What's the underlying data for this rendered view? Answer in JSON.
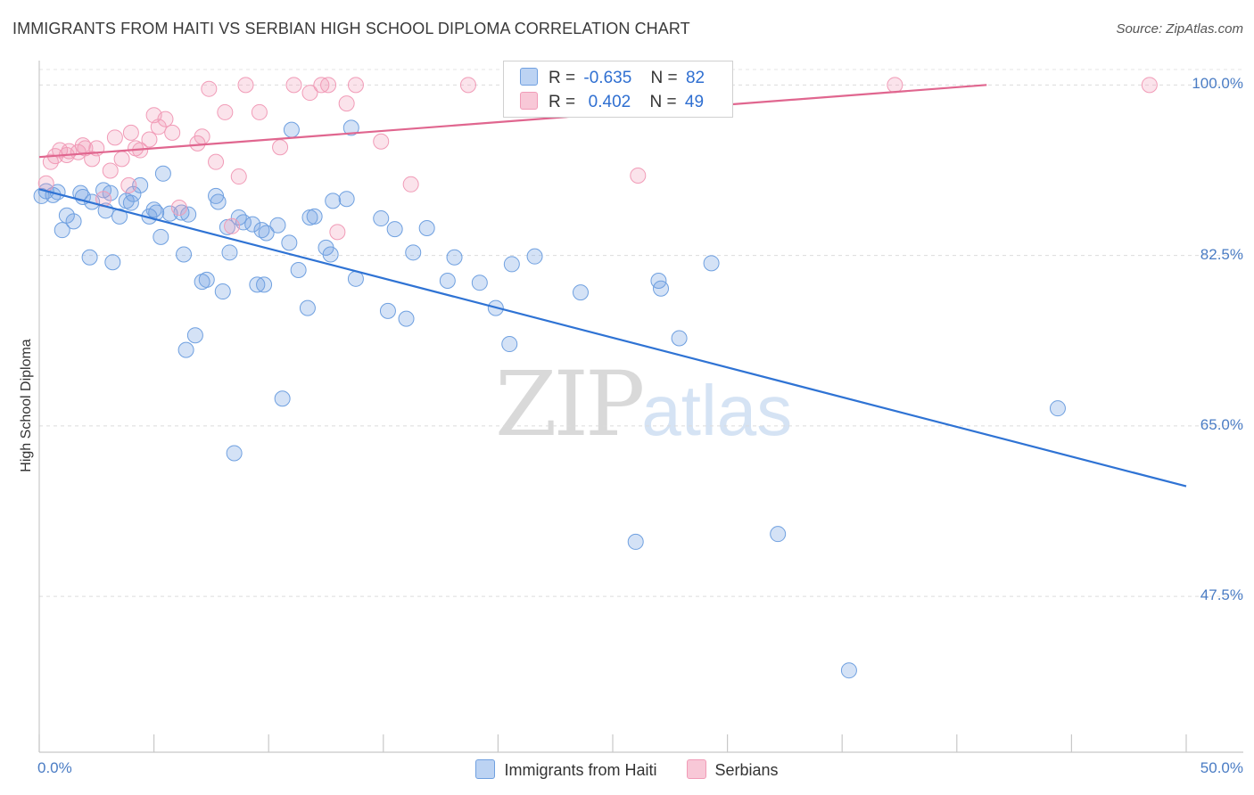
{
  "title": "IMMIGRANTS FROM HAITI VS SERBIAN HIGH SCHOOL DIPLOMA CORRELATION CHART",
  "source": "Source: ZipAtlas.com",
  "watermark": {
    "zip": "ZIP",
    "atlas": "atlas"
  },
  "legend": {
    "rows": [
      {
        "r_label": "R =",
        "r_value": "-0.635",
        "n_label": "N =",
        "n_value": "82"
      },
      {
        "r_label": "R =",
        "r_value": " 0.402",
        "n_label": "N =",
        "n_value": "49"
      }
    ]
  },
  "chart_data": {
    "type": "scatter",
    "title": "IMMIGRANTS FROM HAITI VS SERBIAN HIGH SCHOOL DIPLOMA CORRELATION CHART",
    "xlabel": "",
    "ylabel": "High School Diploma",
    "xlim": [
      0,
      50
    ],
    "ylim": [
      31.5,
      102.5
    ],
    "x_tick_labels": [
      "0.0%",
      "50.0%"
    ],
    "y_ticks": [
      47.5,
      65.0,
      82.5,
      100.0
    ],
    "y_tick_labels": [
      "47.5%",
      "65.0%",
      "82.5%",
      "100.0%"
    ],
    "grid": true,
    "legend_position": "top-center",
    "colors": {
      "haiti": "#6fa0e0",
      "haiti_line": "#2f73d4",
      "serbians": "#f19bb7",
      "serbians_line": "#e0668f"
    },
    "series": [
      {
        "name": "Immigrants from Haiti",
        "trend": {
          "x": [
            0,
            50
          ],
          "y": [
            89.3,
            58.8
          ]
        },
        "points": [
          [
            0.1,
            88.6
          ],
          [
            0.3,
            89.1
          ],
          [
            0.6,
            88.7
          ],
          [
            0.8,
            89.0
          ],
          [
            1.0,
            85.1
          ],
          [
            1.2,
            86.6
          ],
          [
            1.5,
            86.0
          ],
          [
            1.8,
            88.9
          ],
          [
            1.9,
            88.5
          ],
          [
            2.2,
            82.3
          ],
          [
            2.3,
            88.0
          ],
          [
            2.8,
            89.2
          ],
          [
            2.9,
            87.1
          ],
          [
            3.1,
            88.9
          ],
          [
            3.2,
            81.8
          ],
          [
            3.5,
            86.5
          ],
          [
            3.8,
            88.1
          ],
          [
            4.0,
            87.9
          ],
          [
            4.1,
            88.8
          ],
          [
            4.4,
            89.7
          ],
          [
            4.8,
            86.5
          ],
          [
            5.0,
            87.2
          ],
          [
            5.1,
            86.9
          ],
          [
            5.3,
            84.4
          ],
          [
            5.4,
            90.9
          ],
          [
            5.7,
            86.8
          ],
          [
            6.2,
            86.9
          ],
          [
            6.3,
            82.6
          ],
          [
            6.4,
            72.8
          ],
          [
            6.5,
            86.7
          ],
          [
            6.8,
            74.3
          ],
          [
            7.1,
            79.8
          ],
          [
            7.3,
            80.0
          ],
          [
            7.7,
            88.6
          ],
          [
            7.8,
            88.0
          ],
          [
            8.0,
            78.8
          ],
          [
            8.2,
            85.4
          ],
          [
            8.3,
            82.8
          ],
          [
            8.5,
            62.2
          ],
          [
            8.7,
            86.4
          ],
          [
            8.9,
            85.9
          ],
          [
            9.3,
            85.7
          ],
          [
            9.5,
            79.5
          ],
          [
            9.7,
            85.1
          ],
          [
            9.8,
            79.5
          ],
          [
            9.9,
            84.8
          ],
          [
            10.4,
            85.6
          ],
          [
            10.6,
            67.8
          ],
          [
            10.9,
            83.8
          ],
          [
            11.0,
            95.4
          ],
          [
            11.3,
            81.0
          ],
          [
            11.7,
            77.1
          ],
          [
            11.8,
            86.4
          ],
          [
            12.0,
            86.5
          ],
          [
            12.5,
            83.3
          ],
          [
            12.7,
            82.6
          ],
          [
            12.8,
            88.1
          ],
          [
            13.4,
            88.3
          ],
          [
            13.6,
            95.6
          ],
          [
            13.8,
            80.1
          ],
          [
            14.9,
            86.3
          ],
          [
            15.2,
            76.8
          ],
          [
            15.5,
            85.2
          ],
          [
            16.0,
            76.0
          ],
          [
            16.3,
            82.8
          ],
          [
            16.9,
            85.3
          ],
          [
            17.8,
            79.9
          ],
          [
            18.1,
            82.3
          ],
          [
            19.2,
            79.7
          ],
          [
            19.9,
            77.1
          ],
          [
            20.5,
            73.4
          ],
          [
            20.6,
            81.6
          ],
          [
            21.6,
            82.4
          ],
          [
            23.6,
            78.7
          ],
          [
            26.0,
            53.1
          ],
          [
            27.0,
            79.9
          ],
          [
            27.1,
            79.1
          ],
          [
            27.9,
            74.0
          ],
          [
            29.3,
            81.7
          ],
          [
            32.2,
            53.9
          ],
          [
            35.3,
            39.9
          ],
          [
            44.4,
            66.8
          ]
        ]
      },
      {
        "name": "Serbians",
        "trend": {
          "x": [
            0,
            41.3
          ],
          "y": [
            92.6,
            100.0
          ]
        },
        "points": [
          [
            0.3,
            89.9
          ],
          [
            0.5,
            92.1
          ],
          [
            0.7,
            92.7
          ],
          [
            0.9,
            93.3
          ],
          [
            1.2,
            92.8
          ],
          [
            1.3,
            93.2
          ],
          [
            1.7,
            93.1
          ],
          [
            1.9,
            93.8
          ],
          [
            2.0,
            93.5
          ],
          [
            2.3,
            92.4
          ],
          [
            2.5,
            93.5
          ],
          [
            2.8,
            88.3
          ],
          [
            3.1,
            91.2
          ],
          [
            3.3,
            94.6
          ],
          [
            3.6,
            92.4
          ],
          [
            3.9,
            89.7
          ],
          [
            4.0,
            95.1
          ],
          [
            4.2,
            93.5
          ],
          [
            4.4,
            93.3
          ],
          [
            4.8,
            94.4
          ],
          [
            5.0,
            96.9
          ],
          [
            5.2,
            95.7
          ],
          [
            5.5,
            96.5
          ],
          [
            5.8,
            95.1
          ],
          [
            6.1,
            87.4
          ],
          [
            6.9,
            94.0
          ],
          [
            7.1,
            94.7
          ],
          [
            7.4,
            99.6
          ],
          [
            7.7,
            92.1
          ],
          [
            8.1,
            97.2
          ],
          [
            8.4,
            85.5
          ],
          [
            8.7,
            90.6
          ],
          [
            9.0,
            100.0
          ],
          [
            9.6,
            97.2
          ],
          [
            10.5,
            93.6
          ],
          [
            11.1,
            100.0
          ],
          [
            11.8,
            99.2
          ],
          [
            12.3,
            100.0
          ],
          [
            12.6,
            100.0
          ],
          [
            13.0,
            84.9
          ],
          [
            13.4,
            98.1
          ],
          [
            13.8,
            100.0
          ],
          [
            14.9,
            94.2
          ],
          [
            16.2,
            89.8
          ],
          [
            18.7,
            100.0
          ],
          [
            20.6,
            100.0
          ],
          [
            26.1,
            90.7
          ],
          [
            37.3,
            100.0
          ],
          [
            48.4,
            100.0
          ]
        ]
      }
    ]
  },
  "bottom_legend": [
    {
      "label": "Immigrants from Haiti"
    },
    {
      "label": "Serbians"
    }
  ]
}
